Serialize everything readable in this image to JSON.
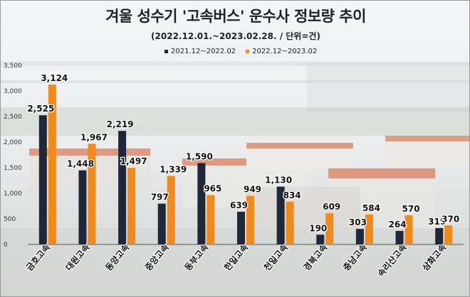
{
  "title": "겨울 성수기 '고속버스' 운수사 정보량 추이",
  "subtitle": "(2022.12.01.~2023.02.28. / 단위=건)",
  "colors": {
    "dark": "#1f2838",
    "orange": "#f08a1c"
  },
  "chart_data": {
    "type": "bar",
    "title": "겨울 성수기 '고속버스' 운수사 정보량 추이",
    "subtitle": "(2022.12.01.~2023.02.28. / 단위=건)",
    "categories": [
      "금호고속",
      "대원고속",
      "동양고속",
      "중앙고속",
      "동부고속",
      "한일고속",
      "천일고속",
      "경북고속",
      "충남고속",
      "속리산고속",
      "삼화고속"
    ],
    "series": [
      {
        "name": "2021.12~2022.02",
        "values": [
          2525,
          1448,
          2219,
          797,
          1590,
          639,
          1130,
          190,
          303,
          264,
          319
        ]
      },
      {
        "name": "2022.12~2023.02",
        "values": [
          3124,
          1967,
          1497,
          1339,
          965,
          949,
          834,
          609,
          584,
          570,
          370
        ]
      }
    ],
    "value_labels": [
      [
        "2,525",
        "1,448",
        "2,219",
        "797",
        "1,590",
        "639",
        "1,130",
        "190",
        "303",
        "264",
        "319"
      ],
      [
        "3,124",
        "1,967",
        "1,497",
        "1,339",
        "965",
        "949",
        "834",
        "609",
        "584",
        "570",
        "370"
      ]
    ],
    "y_ticks": [
      "0",
      "500",
      "1,000",
      "1,500",
      "2,000",
      "2,500",
      "3,000",
      "3,500"
    ],
    "ylim": [
      0,
      3500
    ],
    "legend_position": "top-center"
  }
}
